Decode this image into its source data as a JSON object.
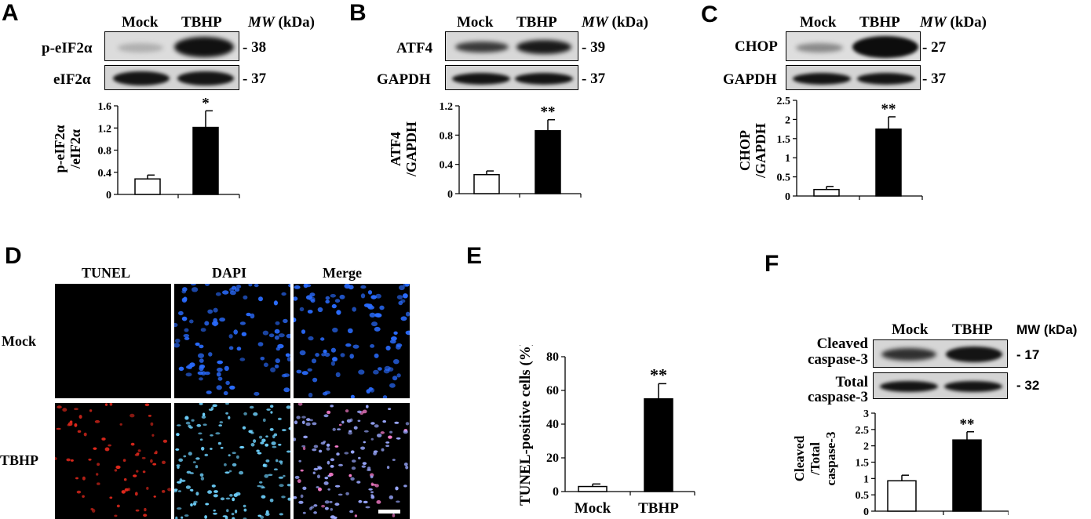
{
  "panels": {
    "A": {
      "label": "A",
      "lanes": [
        "Mock",
        "TBHP"
      ],
      "mw_title_italic": "MW",
      "mw_title_rest": " (kDa)",
      "blots": [
        {
          "name": "p-eIF2α",
          "mw": "- 38"
        },
        {
          "name": "eIF2α",
          "mw": "- 37"
        }
      ],
      "chart_data": {
        "type": "bar",
        "categories": [
          "Mock",
          "TBHP"
        ],
        "values": [
          0.28,
          1.21
        ],
        "errors": [
          0.07,
          0.3
        ],
        "significance": [
          "",
          "*"
        ],
        "ylabel_line1": "p-eIF2α",
        "ylabel_line2": "/eIF2α",
        "ylim": [
          0,
          1.6
        ],
        "yticks": [
          "0",
          "0.4",
          "0.8",
          "1.2",
          "1.6"
        ],
        "ytick_values": [
          0,
          0.4,
          0.8,
          1.2,
          1.6
        ],
        "bar_colors": [
          "#ffffff",
          "#000000"
        ]
      }
    },
    "B": {
      "label": "B",
      "lanes": [
        "Mock",
        "TBHP"
      ],
      "mw_title_italic": "MW",
      "mw_title_rest": " (kDa)",
      "blots": [
        {
          "name": "ATF4",
          "mw": "- 39"
        },
        {
          "name": "GAPDH",
          "mw": "- 37"
        }
      ],
      "chart_data": {
        "type": "bar",
        "categories": [
          "Mock",
          "TBHP"
        ],
        "values": [
          0.26,
          0.86
        ],
        "errors": [
          0.05,
          0.15
        ],
        "significance": [
          "",
          "**"
        ],
        "ylabel_line1": "ATF4",
        "ylabel_line2": "/GAPDH",
        "ylim": [
          0,
          1.2
        ],
        "yticks": [
          "0",
          "0.4",
          "0.8",
          "1.2"
        ],
        "ytick_values": [
          0,
          0.4,
          0.8,
          1.2
        ],
        "bar_colors": [
          "#ffffff",
          "#000000"
        ]
      }
    },
    "C": {
      "label": "C",
      "lanes": [
        "Mock",
        "TBHP"
      ],
      "mw_title_italic": "MW",
      "mw_title_rest": " (kDa)",
      "blots": [
        {
          "name": "CHOP",
          "mw": "- 27"
        },
        {
          "name": "GAPDH",
          "mw": "- 37"
        }
      ],
      "chart_data": {
        "type": "bar",
        "categories": [
          "Mock",
          "TBHP"
        ],
        "values": [
          0.17,
          1.75
        ],
        "errors": [
          0.08,
          0.32
        ],
        "significance": [
          "",
          "**"
        ],
        "ylabel_line1": "CHOP",
        "ylabel_line2": "/GAPDH",
        "ylim": [
          0,
          2.5
        ],
        "yticks": [
          "0",
          "0.5",
          "1",
          "1.5",
          "2",
          "2.5"
        ],
        "ytick_values": [
          0,
          0.5,
          1,
          1.5,
          2,
          2.5
        ],
        "bar_colors": [
          "#ffffff",
          "#000000"
        ]
      }
    },
    "D": {
      "label": "D",
      "columns": [
        "TUNEL",
        "DAPI",
        "Merge"
      ],
      "rows": [
        "Mock",
        "TBHP"
      ]
    },
    "E": {
      "label": "E",
      "chart_data": {
        "type": "bar",
        "categories": [
          "Mock",
          "TBHP"
        ],
        "values": [
          3,
          55
        ],
        "errors": [
          1.5,
          9
        ],
        "significance": [
          "",
          "**"
        ],
        "ylabel_line1": "TUNEL-positive cells (%)",
        "ylim": [
          0,
          80
        ],
        "yticks": [
          "0",
          "20",
          "40",
          "60",
          "80"
        ],
        "ytick_values": [
          0,
          20,
          40,
          60,
          80
        ],
        "bar_colors": [
          "#ffffff",
          "#000000"
        ]
      }
    },
    "F": {
      "label": "F",
      "lanes": [
        "Mock",
        "TBHP"
      ],
      "mw_title": "MW (kDa)",
      "blots": [
        {
          "name_line1": "Cleaved",
          "name_line2": "caspase-3",
          "mw": "- 17"
        },
        {
          "name_line1": "Total",
          "name_line2": "caspase-3",
          "mw": "- 32"
        }
      ],
      "chart_data": {
        "type": "bar",
        "categories": [
          "Mock",
          "TBHP"
        ],
        "values": [
          0.93,
          2.18
        ],
        "errors": [
          0.17,
          0.25
        ],
        "significance": [
          "",
          "**"
        ],
        "ylabel_line1": "Cleaved",
        "ylabel_line2": "/Total",
        "ylabel_line3": "caspase-3",
        "ylim": [
          0,
          3
        ],
        "yticks": [
          "0",
          "0.5",
          "1",
          "1.5",
          "2",
          "2.5",
          "3"
        ],
        "ytick_values": [
          0,
          0.5,
          1,
          1.5,
          2,
          2.5,
          3
        ],
        "bar_colors": [
          "#ffffff",
          "#000000"
        ]
      }
    }
  }
}
